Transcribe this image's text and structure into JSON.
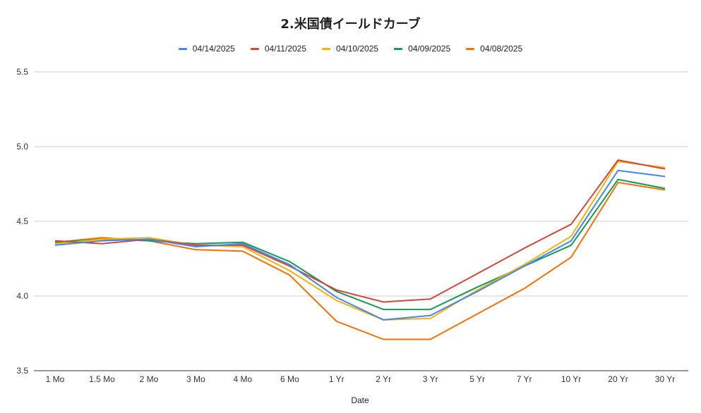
{
  "chart_data": {
    "type": "line",
    "title": "2.米国債イールドカーブ",
    "xlabel": "Date",
    "ylabel": "",
    "ylim": [
      3.5,
      5.5
    ],
    "yticks": [
      "3.5",
      "4.0",
      "4.5",
      "5.0",
      "5.5"
    ],
    "grid": true,
    "legend_position": "top",
    "categories": [
      "1 Mo",
      "1.5 Mo",
      "2 Mo",
      "3 Mo",
      "4 Mo",
      "6 Mo",
      "1 Yr",
      "2 Yr",
      "3 Yr",
      "5 Yr",
      "7 Yr",
      "10 Yr",
      "20 Yr",
      "30 Yr"
    ],
    "series": [
      {
        "name": "04/14/2025",
        "color": "#4285f4",
        "values": [
          4.34,
          4.37,
          4.38,
          4.33,
          4.35,
          4.21,
          3.99,
          3.84,
          3.87,
          4.03,
          4.2,
          4.37,
          4.84,
          4.8
        ]
      },
      {
        "name": "04/11/2025",
        "color": "#db4437",
        "values": [
          4.37,
          4.35,
          4.38,
          4.34,
          4.34,
          4.2,
          4.04,
          3.96,
          3.98,
          4.15,
          4.32,
          4.48,
          4.91,
          4.85
        ]
      },
      {
        "name": "04/10/2025",
        "color": "#f4b400",
        "values": [
          4.35,
          4.38,
          4.39,
          4.34,
          4.33,
          4.17,
          3.97,
          3.84,
          3.85,
          4.04,
          4.21,
          4.4,
          4.9,
          4.86
        ]
      },
      {
        "name": "04/09/2025",
        "color": "#0f9d58",
        "values": [
          4.36,
          4.38,
          4.37,
          4.35,
          4.36,
          4.23,
          4.03,
          3.91,
          3.91,
          4.06,
          4.2,
          4.34,
          4.78,
          4.72
        ]
      },
      {
        "name": "04/08/2025",
        "color": "#ff6d01",
        "values": [
          4.36,
          4.39,
          4.37,
          4.31,
          4.3,
          4.14,
          3.83,
          3.71,
          3.71,
          3.88,
          4.05,
          4.26,
          4.76,
          4.71
        ]
      }
    ]
  }
}
